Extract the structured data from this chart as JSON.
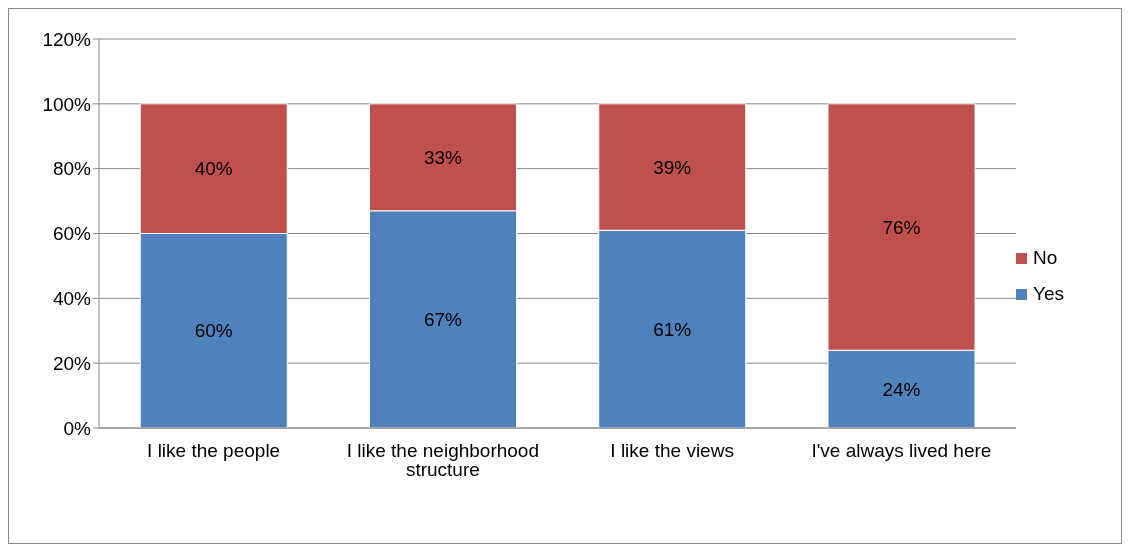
{
  "chart_data": {
    "type": "bar",
    "stacked": true,
    "categories": [
      "I like the people",
      "I like the neighborhood structure",
      "I like the views",
      "I've always lived here"
    ],
    "series": [
      {
        "name": "Yes",
        "color": "#4f81bd",
        "values": [
          60,
          67,
          61,
          24
        ],
        "value_labels": [
          "60%",
          "67%",
          "61%",
          "24%"
        ]
      },
      {
        "name": "No",
        "color": "#c0504d",
        "values": [
          40,
          33,
          39,
          76
        ],
        "value_labels": [
          "40%",
          "33%",
          "39%",
          "76%"
        ]
      }
    ],
    "ylim": [
      0,
      120
    ],
    "yticks": [
      {
        "value": 0,
        "label": "0%"
      },
      {
        "value": 20,
        "label": "20%"
      },
      {
        "value": 40,
        "label": "40%"
      },
      {
        "value": 60,
        "label": "60%"
      },
      {
        "value": 80,
        "label": "80%"
      },
      {
        "value": 100,
        "label": "100%"
      },
      {
        "value": 120,
        "label": "120%"
      }
    ],
    "grid": "y",
    "legend": "right"
  }
}
